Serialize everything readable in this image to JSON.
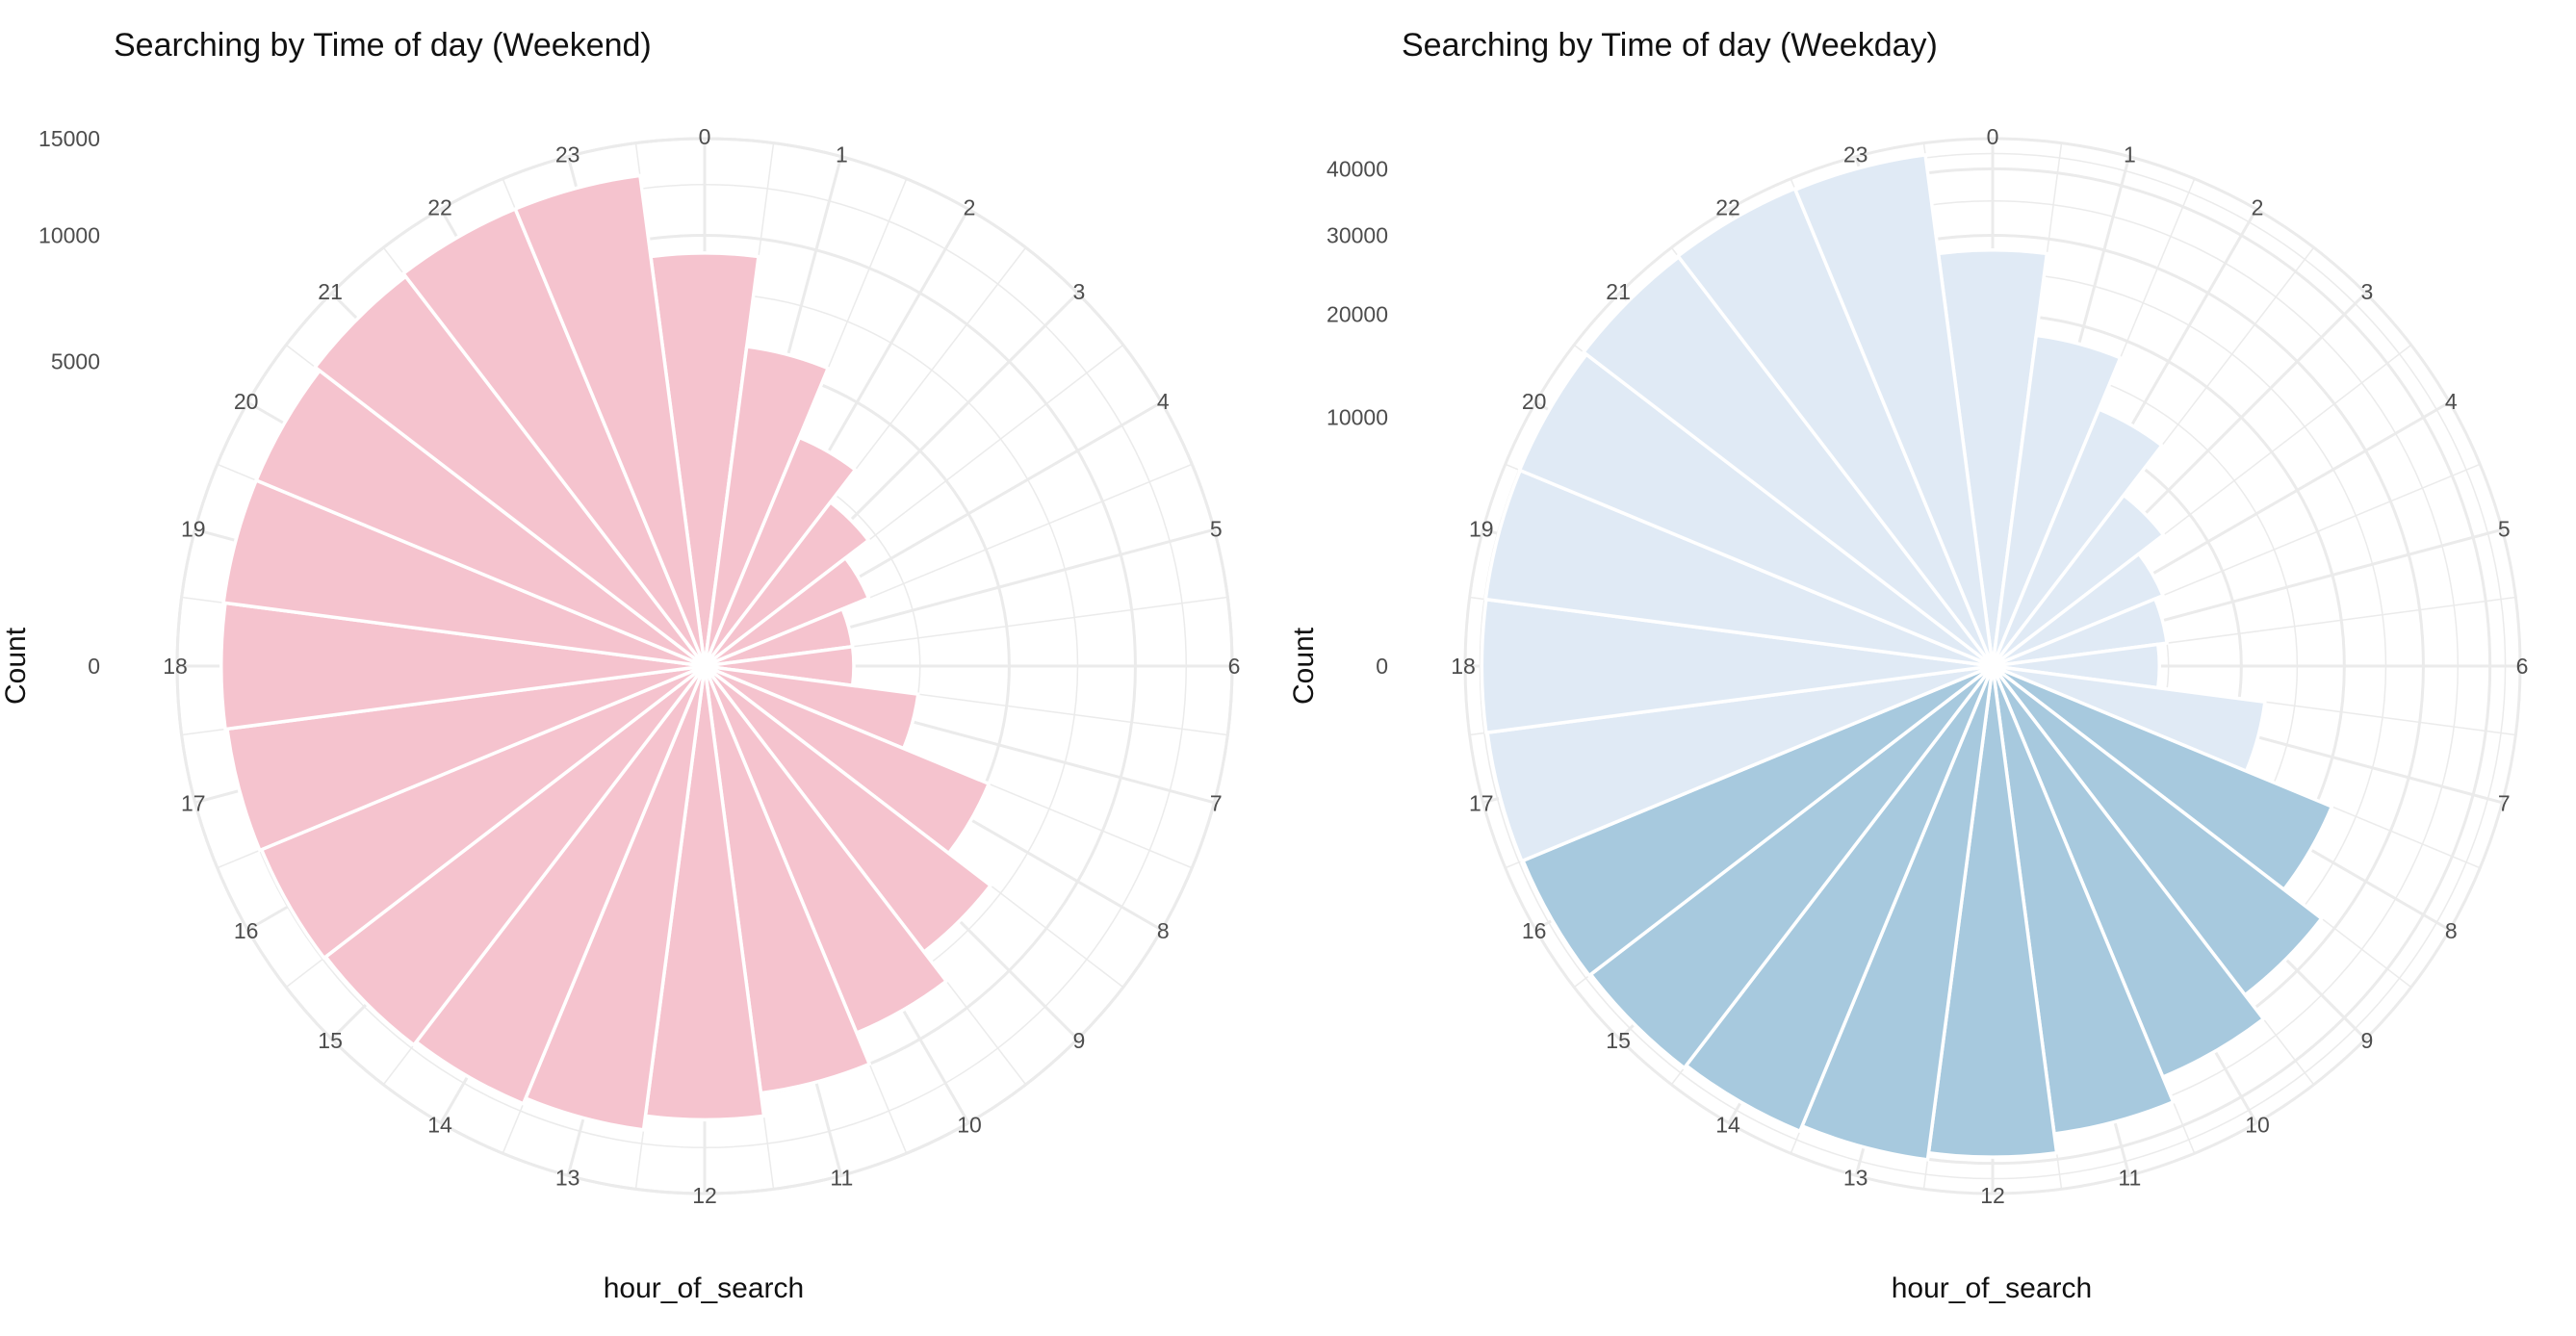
{
  "chart_data": [
    {
      "type": "bar",
      "coord": "polar",
      "title": "Searching by Time of day (Weekend)",
      "xlabel": "hour_of_search",
      "ylabel": "Count",
      "categories": [
        "0",
        "1",
        "2",
        "3",
        "4",
        "5",
        "6",
        "7",
        "8",
        "9",
        "10",
        "11",
        "12",
        "13",
        "14",
        "15",
        "16",
        "17",
        "18",
        "19",
        "20",
        "21",
        "22",
        "23"
      ],
      "values": [
        9200,
        5600,
        3300,
        2300,
        1700,
        1200,
        1200,
        2500,
        5100,
        7000,
        8500,
        10000,
        11100,
        11800,
        12100,
        12300,
        12400,
        12500,
        12600,
        12700,
        12700,
        13000,
        13200,
        13200
      ],
      "ylim": [
        0,
        15000
      ],
      "y_ticks": [
        "0",
        "5000",
        "10000",
        "15000"
      ],
      "fill": "#f5c3ce",
      "grid": true,
      "legend": "none"
    },
    {
      "type": "bar",
      "coord": "polar",
      "title": "Searching by Time of day (Weekday)",
      "xlabel": "hour_of_search",
      "ylabel": "Count",
      "categories": [
        "0",
        "1",
        "2",
        "3",
        "4",
        "5",
        "6",
        "7",
        "8",
        "9",
        "10",
        "11",
        "12",
        "13",
        "14",
        "15",
        "16",
        "17",
        "18",
        "19",
        "20",
        "21",
        "22",
        "23"
      ],
      "values": [
        28000,
        18000,
        12500,
        7500,
        5500,
        5000,
        4500,
        12200,
        21800,
        27800,
        32000,
        36000,
        39000,
        40100,
        41000,
        41500,
        41800,
        42000,
        42200,
        42300,
        42400,
        43000,
        43200,
        43000
      ],
      "ylim": [
        0,
        45000
      ],
      "y_ticks": [
        "0",
        "10000",
        "20000",
        "30000",
        "40000"
      ],
      "fill_light": "#e0eaf5",
      "fill_dark": "#a7c9de",
      "dark_hours": [
        "8",
        "9",
        "10",
        "11",
        "12",
        "13",
        "14",
        "15",
        "16"
      ],
      "grid": true,
      "legend": "none"
    }
  ]
}
